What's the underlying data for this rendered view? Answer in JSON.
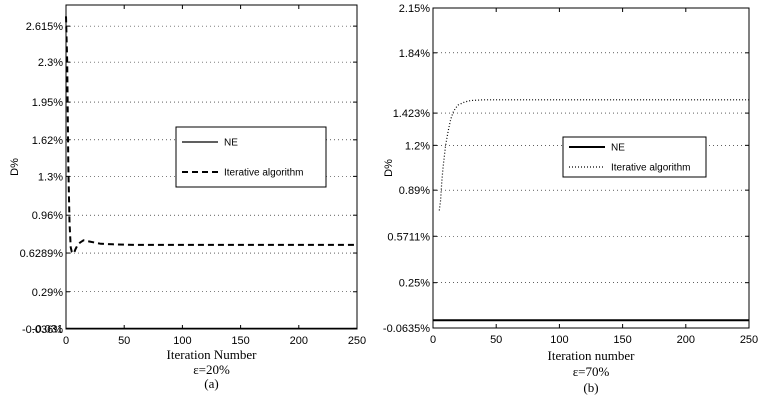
{
  "chart_data": [
    {
      "type": "line",
      "xlabel": "Iteration Number",
      "ylabel": "D%",
      "subcaption": "ε=20%",
      "panel_label": "(a)",
      "xlim": [
        0,
        250
      ],
      "ylim": [
        -0.036,
        2.8
      ],
      "xticks": [
        "0",
        "50",
        "100",
        "150",
        "200",
        "250"
      ],
      "xtick_values": [
        0,
        50,
        100,
        150,
        200,
        250
      ],
      "yticks": [
        "-0.036%",
        "-0.031",
        "0.29%",
        "0.6289%",
        "0.96%",
        "1.3%",
        "1.62%",
        "1.95%",
        "2.3%",
        "2.615%"
      ],
      "ytick_values": [
        -0.036,
        -0.031,
        0.29,
        0.6289,
        0.96,
        1.3,
        1.62,
        1.95,
        2.3,
        2.615
      ],
      "grid": true,
      "legend_position": "center-right",
      "series": [
        {
          "name": "NE",
          "style": "solid",
          "x": [
            0,
            250
          ],
          "y": [
            -0.031,
            -0.031
          ]
        },
        {
          "name": "Iterative algorithm",
          "style": "dashed",
          "x": [
            0,
            1,
            2,
            3,
            4,
            5,
            6,
            7,
            8,
            10,
            12,
            15,
            20,
            30,
            40,
            60,
            100,
            150,
            200,
            250
          ],
          "y": [
            2.7,
            2.3,
            1.4,
            0.9,
            0.68,
            0.64,
            0.625,
            0.63,
            0.66,
            0.7,
            0.72,
            0.74,
            0.73,
            0.71,
            0.705,
            0.7,
            0.7,
            0.7,
            0.7,
            0.7
          ]
        }
      ]
    },
    {
      "type": "line",
      "xlabel": "Iteration number",
      "ylabel": "D%",
      "subcaption": "ε=70%",
      "panel_label": "(b)",
      "xlim": [
        0,
        250
      ],
      "ylim": [
        -0.0635,
        2.15
      ],
      "xticks": [
        "0",
        "50",
        "100",
        "150",
        "200",
        "250"
      ],
      "xtick_values": [
        0,
        50,
        100,
        150,
        200,
        250
      ],
      "yticks": [
        "-0.0635%",
        "0.25%",
        "0.5711%",
        "0.89%",
        "1.2%",
        "1.423%",
        "1.84%",
        "2.15%"
      ],
      "ytick_values": [
        -0.0635,
        0.25,
        0.5711,
        0.89,
        1.2,
        1.423,
        1.84,
        2.15
      ],
      "grid": true,
      "legend_position": "center-right",
      "series": [
        {
          "name": "NE",
          "style": "solid",
          "x": [
            0,
            250
          ],
          "y": [
            -0.01,
            -0.01
          ]
        },
        {
          "name": "Iterative algorithm",
          "style": "dotted",
          "x": [
            5,
            6,
            7,
            8,
            10,
            12,
            14,
            16,
            18,
            20,
            25,
            30,
            40,
            60,
            100,
            150,
            200,
            250
          ],
          "y": [
            0.75,
            0.82,
            0.95,
            1.05,
            1.2,
            1.3,
            1.38,
            1.43,
            1.46,
            1.48,
            1.5,
            1.51,
            1.515,
            1.515,
            1.515,
            1.515,
            1.515,
            1.515
          ]
        }
      ]
    }
  ]
}
